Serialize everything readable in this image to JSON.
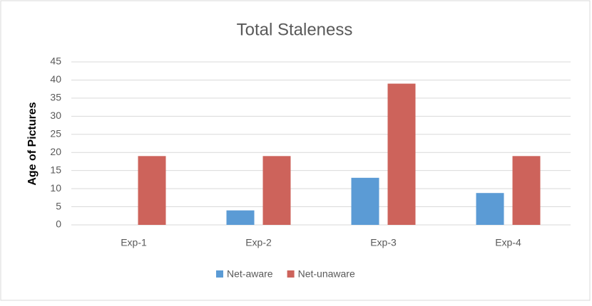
{
  "chart_data": {
    "type": "bar",
    "title": "Total Staleness",
    "y_label": "Age of Pictures",
    "categories": [
      "Exp-1",
      "Exp-2",
      "Exp-3",
      "Exp-4"
    ],
    "series": [
      {
        "name": "Net-aware",
        "color": "#5b9bd5",
        "values": [
          0,
          4,
          13,
          8.8
        ]
      },
      {
        "name": "Net-unaware",
        "color": "#cd635b",
        "values": [
          19,
          19,
          39,
          19
        ]
      }
    ],
    "ylim": [
      0,
      45
    ],
    "yticks": [
      0,
      5,
      10,
      15,
      20,
      25,
      30,
      35,
      40,
      45
    ],
    "grid": true,
    "legend": "bottom"
  }
}
